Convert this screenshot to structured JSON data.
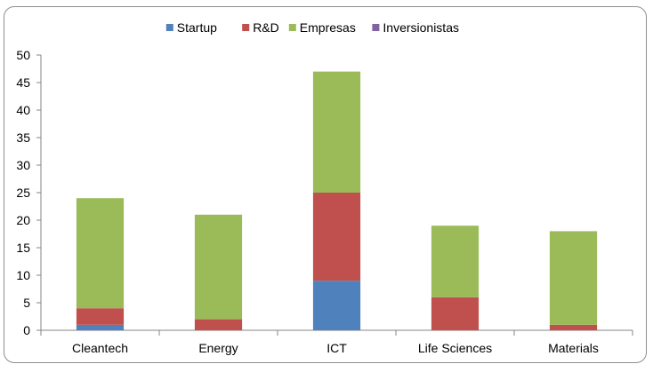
{
  "chart_data": {
    "type": "bar",
    "stacked": true,
    "categories": [
      "Cleantech",
      "Energy",
      "ICT",
      "Life Sciences",
      "Materials"
    ],
    "series": [
      {
        "name": "Startup",
        "color": "#4f81bd",
        "values": [
          1,
          0,
          9,
          0,
          0
        ]
      },
      {
        "name": "R&D",
        "color": "#c0504d",
        "values": [
          3,
          2,
          16,
          6,
          1
        ]
      },
      {
        "name": "Empresas",
        "color": "#9bbb59",
        "values": [
          20,
          19,
          22,
          13,
          17
        ]
      },
      {
        "name": "Inversionistas",
        "color": "#8064a2",
        "values": [
          0,
          0,
          0,
          0,
          0
        ]
      }
    ],
    "ylim": [
      0,
      50
    ],
    "yticks": [
      "0",
      "5",
      "10",
      "15",
      "20",
      "25",
      "30",
      "35",
      "40",
      "45",
      "50"
    ],
    "grid": false,
    "legend_position": "top"
  }
}
